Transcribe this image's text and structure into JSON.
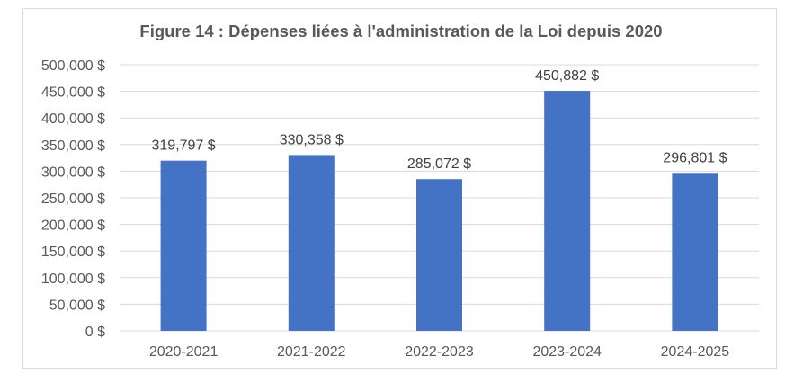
{
  "chart_data": {
    "type": "bar",
    "title": "Figure 14 : Dépenses liées à l'administration  de la Loi depuis 2020",
    "xlabel": "",
    "ylabel": "",
    "categories": [
      "2020-2021",
      "2021-2022",
      "2022-2023",
      "2023-2024",
      "2024-2025"
    ],
    "values": [
      319797,
      330358,
      285072,
      450882,
      296801
    ],
    "data_labels": [
      "319,797 $",
      "330,358 $",
      "285,072 $",
      "450,882 $",
      "296,801 $"
    ],
    "ylim": [
      0,
      500000
    ],
    "yticks": [
      0,
      50000,
      100000,
      150000,
      200000,
      250000,
      300000,
      350000,
      400000,
      450000,
      500000
    ],
    "ytick_labels": [
      "0 $",
      "50,000 $",
      "100,000 $",
      "150,000 $",
      "200,000 $",
      "250,000 $",
      "300,000 $",
      "350,000 $",
      "400,000 $",
      "450,000 $",
      "500,000 $"
    ],
    "grid": true,
    "legend": "none",
    "bar_color": "#4472c4"
  }
}
